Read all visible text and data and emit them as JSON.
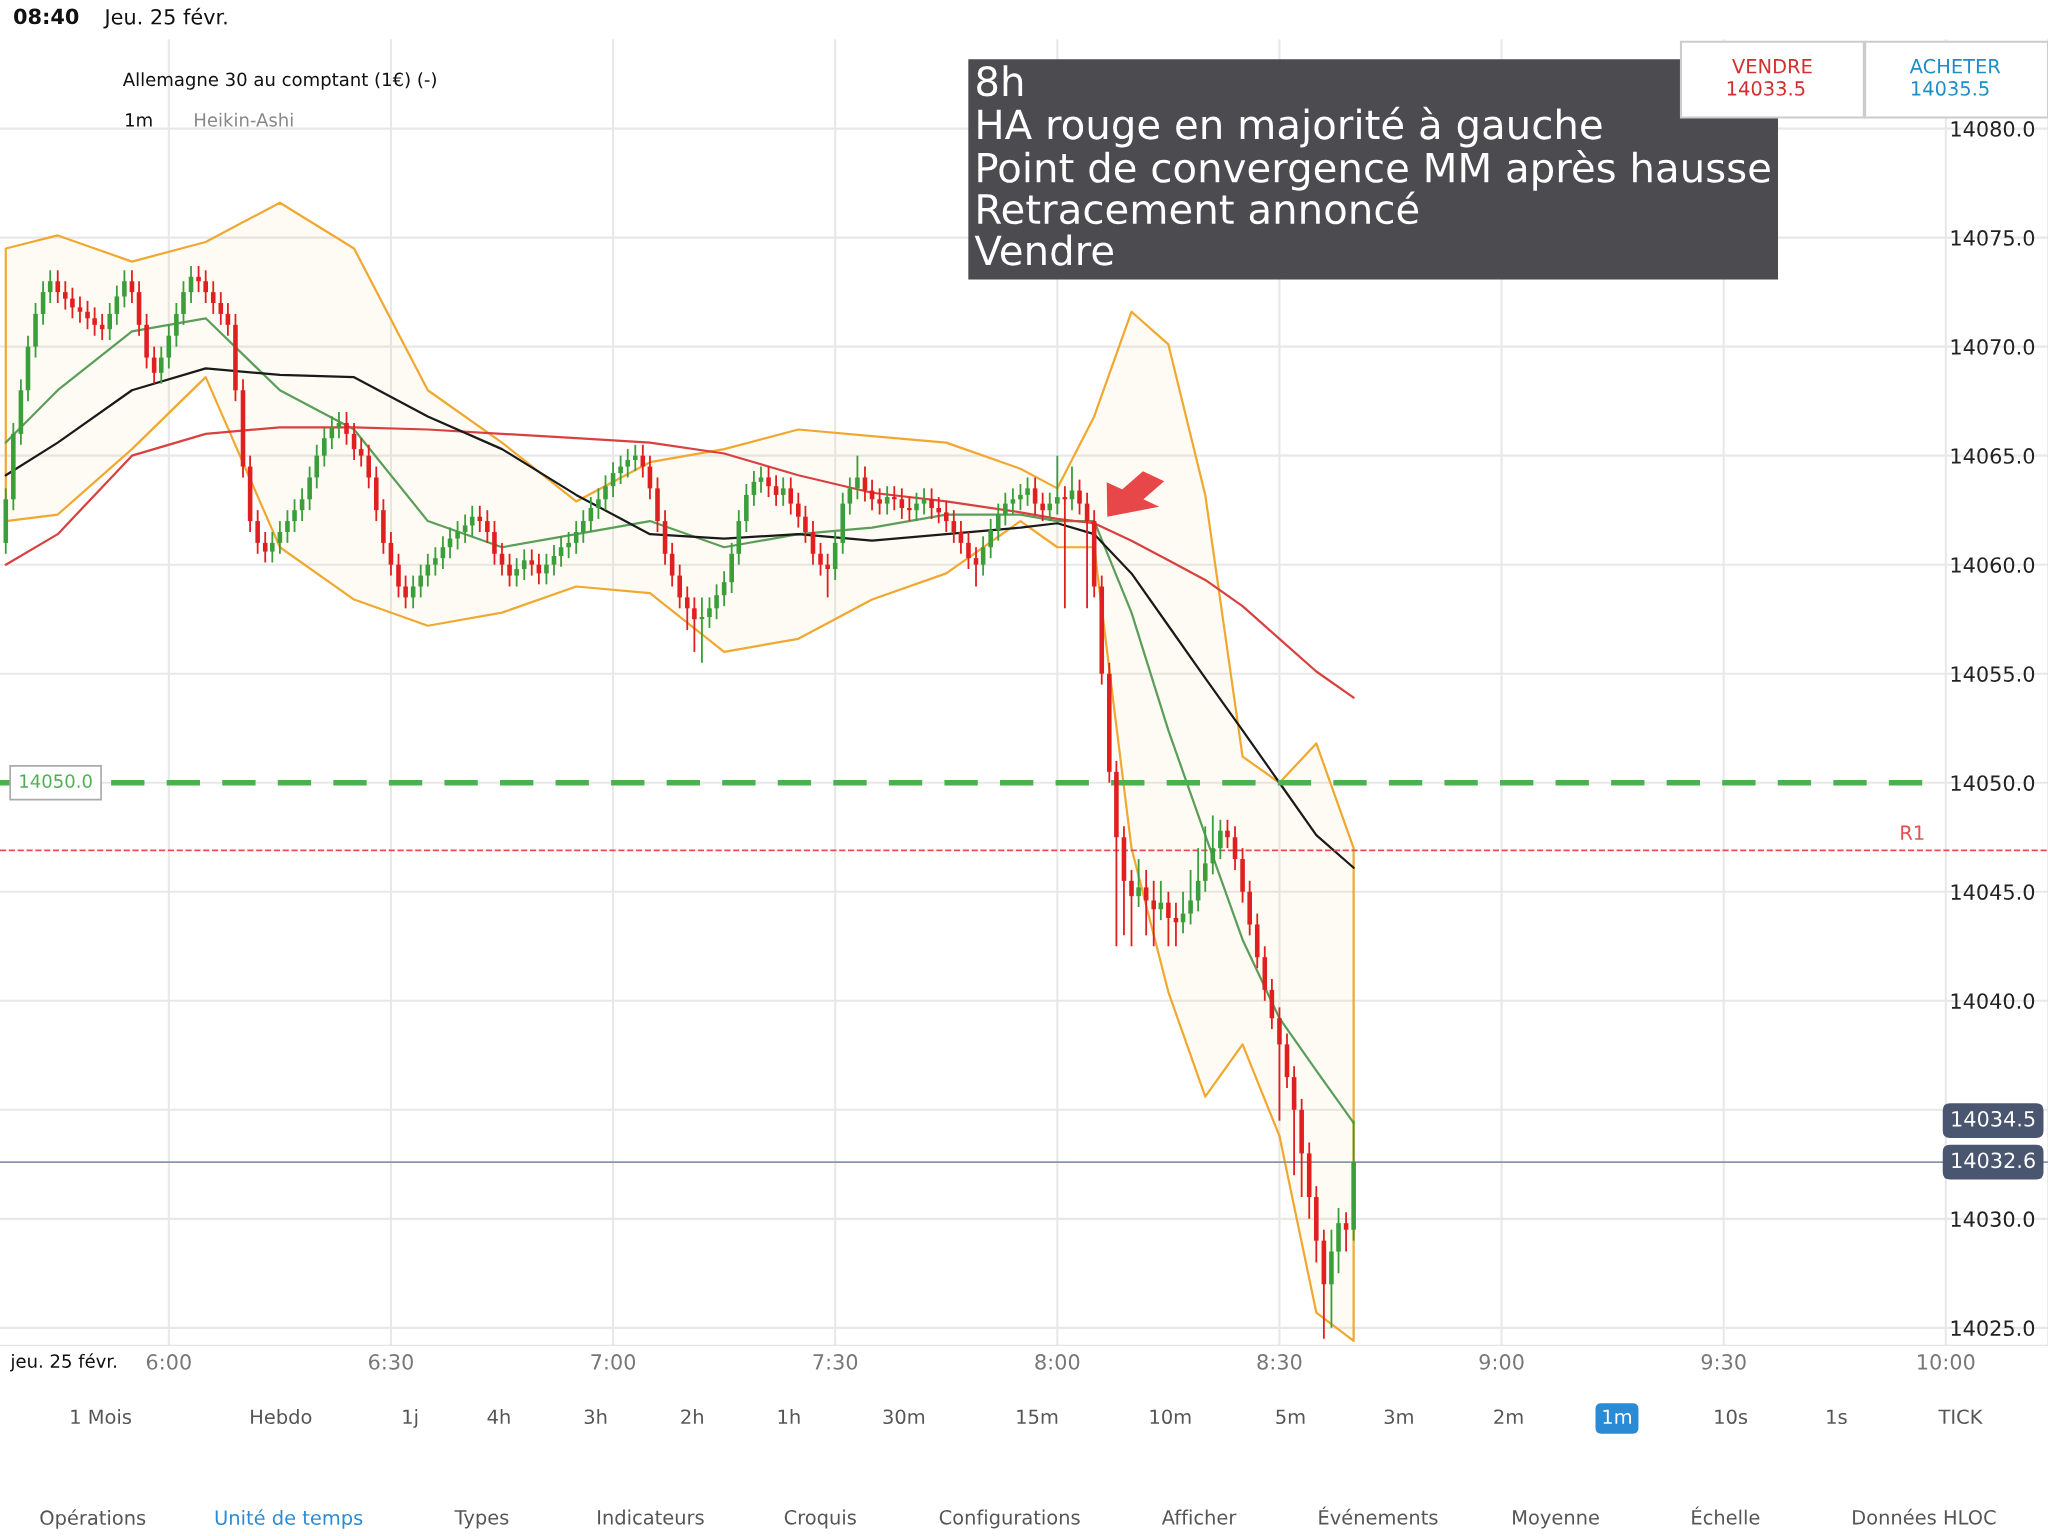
{
  "chart_data": {
    "type": "candlestick",
    "title": "Allemagne 30 au comptant (1€) (-)",
    "subtitle": "Heikin-Ashi",
    "xlim": [
      5.62,
      10.23
    ],
    "ylim": [
      14024.2,
      14084.1
    ],
    "xticks": [
      {
        "value": 6,
        "label": "6:00"
      },
      {
        "value": 6.5,
        "label": "6:30"
      },
      {
        "value": 7,
        "label": "7:00"
      },
      {
        "value": 7.5,
        "label": "7:30"
      },
      {
        "value": 8,
        "label": "8:00"
      },
      {
        "value": 8.5,
        "label": "8:30"
      },
      {
        "value": 9,
        "label": "9:00"
      },
      {
        "value": 9.5,
        "label": "9:30"
      },
      {
        "value": 10,
        "label": "10:00"
      }
    ],
    "yticks": [
      {
        "value": 14025,
        "label": "14025.0"
      },
      {
        "value": 14030,
        "label": "14030.0"
      },
      {
        "value": 14035,
        "label": null
      },
      {
        "value": 14040,
        "label": "14040.0"
      },
      {
        "value": 14045,
        "label": "14045.0"
      },
      {
        "value": 14050,
        "label": "14050.0"
      },
      {
        "value": 14055,
        "label": "14055.0"
      },
      {
        "value": 14060,
        "label": "14060.0"
      },
      {
        "value": 14065,
        "label": "14065.0"
      },
      {
        "value": 14070,
        "label": "14070.0"
      },
      {
        "value": 14075,
        "label": "14075.0"
      },
      {
        "value": 14080,
        "label": "14080.0"
      }
    ],
    "grid": true,
    "series": [
      {
        "type": "line",
        "color": "#5a9e5a",
        "x": [
          5.633,
          5.75,
          5.917,
          6.083,
          6.25,
          6.417,
          6.583,
          6.75,
          6.917,
          7.083,
          7.25,
          7.417,
          7.583,
          7.75,
          7.917,
          8.0,
          8.083,
          8.167,
          8.25,
          8.333,
          8.417,
          8.5,
          8.583,
          8.667
        ],
        "values": [
          14065.6,
          14068.0,
          14070.7,
          14071.3,
          14068.0,
          14066.2,
          14062.0,
          14060.8,
          14061.4,
          14062.0,
          14060.8,
          14061.4,
          14061.7,
          14062.3,
          14062.3,
          14062.0,
          14062.0,
          14057.8,
          14052.4,
          14047.6,
          14042.8,
          14039.2,
          14036.8,
          14034.4
        ],
        "lower": [
          14062.0,
          14062.3,
          14065.3,
          14068.6,
          14060.8,
          14058.4,
          14057.2,
          14057.8,
          14059.0,
          14058.7,
          14056.0,
          14056.6,
          14058.4,
          14059.6,
          14062.0,
          14060.8,
          14060.8,
          14047.0,
          14040.4,
          14035.6,
          14038.0,
          14033.8,
          14025.7,
          14024.4
        ],
        "upper": [
          14074.5,
          14075.1,
          14073.9,
          14074.8,
          14076.6,
          14074.5,
          14068.0,
          14065.6,
          14062.9,
          14064.7,
          14065.3,
          14066.2,
          14065.9,
          14065.6,
          14064.4,
          14063.5,
          14066.8,
          14071.6,
          14070.1,
          14063.2,
          14051.2,
          14050.0,
          14051.8,
          14047.0
        ]
      },
      {
        "type": "line",
        "color": "#d94040",
        "x": [
          5.633,
          5.75,
          5.917,
          6.083,
          6.25,
          6.417,
          6.583,
          6.75,
          6.917,
          7.083,
          7.25,
          7.417,
          7.583,
          7.75,
          7.917,
          8.0,
          8.083,
          8.167,
          8.25,
          8.333,
          8.417,
          8.5,
          8.583,
          8.667
        ],
        "values": [
          14060.0,
          14061.4,
          14065.0,
          14066.0,
          14066.3,
          14066.3,
          14066.2,
          14066.0,
          14065.8,
          14065.6,
          14065.1,
          14064.1,
          14063.3,
          14062.9,
          14062.4,
          14062.1,
          14061.9,
          14061.1,
          14060.2,
          14059.3,
          14058.1,
          14056.6,
          14055.1,
          14053.9
        ]
      },
      {
        "type": "line",
        "color": "#1a1a1a",
        "x": [
          5.633,
          5.75,
          5.917,
          6.083,
          6.25,
          6.417,
          6.583,
          6.75,
          6.917,
          7.083,
          7.25,
          7.417,
          7.583,
          7.75,
          7.917,
          8.0,
          8.083,
          8.167,
          8.25,
          8.333,
          8.417,
          8.5,
          8.583,
          8.667
        ],
        "values": [
          14064.1,
          14065.6,
          14068.0,
          14069.0,
          14068.7,
          14068.6,
          14066.8,
          14065.3,
          14063.2,
          14061.4,
          14061.2,
          14061.4,
          14061.1,
          14061.4,
          14061.7,
          14061.9,
          14061.4,
          14059.6,
          14057.2,
          14054.8,
          14052.4,
          14050.0,
          14047.6,
          14046.1
        ]
      },
      {
        "x": [
          5.633,
          5.65,
          5.667,
          5.683,
          5.7,
          5.717,
          5.733,
          5.75,
          5.767,
          5.783,
          5.8,
          5.817,
          5.833,
          5.85,
          5.867,
          5.883,
          5.9,
          5.917,
          5.933,
          5.95,
          5.967,
          5.983,
          6.0,
          6.017,
          6.033,
          6.05,
          6.067,
          6.083,
          6.1,
          6.117,
          6.133,
          6.15,
          6.167,
          6.183,
          6.2,
          6.217,
          6.233,
          6.25,
          6.267,
          6.283,
          6.3,
          6.317,
          6.333,
          6.35,
          6.367,
          6.383,
          6.4,
          6.417,
          6.433,
          6.45,
          6.467,
          6.483,
          6.5,
          6.517,
          6.533,
          6.55,
          6.567,
          6.583,
          6.6,
          6.617,
          6.633,
          6.65,
          6.667,
          6.683,
          6.7,
          6.717,
          6.733,
          6.75,
          6.767,
          6.783,
          6.8,
          6.817,
          6.833,
          6.85,
          6.867,
          6.883,
          6.9,
          6.917,
          6.933,
          6.95,
          6.967,
          6.983,
          7.0,
          7.017,
          7.033,
          7.05,
          7.067,
          7.083,
          7.1,
          7.117,
          7.133,
          7.15,
          7.167,
          7.183,
          7.2,
          7.217,
          7.233,
          7.25,
          7.267,
          7.283,
          7.3,
          7.317,
          7.333,
          7.35,
          7.367,
          7.383,
          7.4,
          7.417,
          7.433,
          7.45,
          7.467,
          7.483,
          7.5,
          7.517,
          7.533,
          7.55,
          7.567,
          7.583,
          7.6,
          7.617,
          7.633,
          7.65,
          7.667,
          7.683,
          7.7,
          7.717,
          7.733,
          7.75,
          7.767,
          7.783,
          7.8,
          7.817,
          7.833,
          7.85,
          7.867,
          7.883,
          7.9,
          7.917,
          7.933,
          7.95,
          7.967,
          7.983,
          8.0,
          8.017,
          8.033,
          8.05,
          8.067,
          8.083,
          8.1,
          8.117,
          8.133,
          8.15,
          8.167,
          8.183,
          8.2,
          8.217,
          8.233,
          8.25,
          8.267,
          8.283,
          8.3,
          8.317,
          8.333,
          8.35,
          8.367,
          8.383,
          8.4,
          8.417,
          8.433,
          8.45,
          8.467,
          8.483,
          8.5,
          8.517,
          8.533,
          8.55,
          8.567,
          8.583,
          8.6,
          8.617,
          8.633,
          8.65,
          8.667
        ],
        "ohlc": [
          [
            14061,
            14063.5,
            14060.5,
            14063
          ],
          [
            14063,
            14066.5,
            14062.5,
            14066
          ],
          [
            14066,
            14068.5,
            14065.5,
            14068
          ],
          [
            14068,
            14070.5,
            14067.5,
            14070
          ],
          [
            14070,
            14072,
            14069.5,
            14071.5
          ],
          [
            14071.5,
            14073,
            14071,
            14072.5
          ],
          [
            14072.5,
            14073.5,
            14072,
            14073
          ],
          [
            14073,
            14073.5,
            14072,
            14072.5
          ],
          [
            14072.5,
            14073,
            14071.7,
            14072.2
          ],
          [
            14072.2,
            14072.7,
            14071.3,
            14071.8
          ],
          [
            14071.8,
            14072.3,
            14071.1,
            14071.6
          ],
          [
            14071.6,
            14072.1,
            14070.8,
            14071.3
          ],
          [
            14071.3,
            14071.8,
            14070.5,
            14071
          ],
          [
            14071,
            14071.5,
            14070.3,
            14070.8
          ],
          [
            14070.8,
            14072,
            14070.3,
            14071.5
          ],
          [
            14071.5,
            14072.8,
            14071,
            14072.3
          ],
          [
            14072.3,
            14073.5,
            14071.8,
            14073
          ],
          [
            14073,
            14073.5,
            14072,
            14072.5
          ],
          [
            14072.5,
            14073,
            14070.5,
            14071
          ],
          [
            14071,
            14071.5,
            14069,
            14069.5
          ],
          [
            14069.5,
            14070,
            14068.3,
            14068.8
          ],
          [
            14068.8,
            14070,
            14068.3,
            14069.5
          ],
          [
            14069.5,
            14071,
            14069,
            14070.5
          ],
          [
            14070.5,
            14072,
            14070,
            14071.5
          ],
          [
            14071.5,
            14073,
            14071,
            14072.5
          ],
          [
            14072.5,
            14073.7,
            14072,
            14073.2
          ],
          [
            14073.2,
            14073.7,
            14072.5,
            14073
          ],
          [
            14073,
            14073.5,
            14072,
            14072.5
          ],
          [
            14072.5,
            14073,
            14071.5,
            14072
          ],
          [
            14072,
            14072.5,
            14071,
            14071.5
          ],
          [
            14071.5,
            14072,
            14070.5,
            14071
          ],
          [
            14071,
            14071.5,
            14067.5,
            14068
          ],
          [
            14068,
            14068.5,
            14064,
            14064.5
          ],
          [
            14064.5,
            14065,
            14061.5,
            14062
          ],
          [
            14062,
            14062.5,
            14060.5,
            14061
          ],
          [
            14061,
            14061.5,
            14060.1,
            14060.6
          ],
          [
            14060.6,
            14061.5,
            14060.1,
            14061
          ],
          [
            14061,
            14062,
            14060.5,
            14061.5
          ],
          [
            14061.5,
            14062.5,
            14061,
            14062
          ],
          [
            14062,
            14063,
            14061.5,
            14062.5
          ],
          [
            14062.5,
            14063.5,
            14062,
            14063
          ],
          [
            14063,
            14064.5,
            14062.5,
            14064
          ],
          [
            14064,
            14065.5,
            14063.5,
            14065
          ],
          [
            14065,
            14066.3,
            14064.5,
            14065.8
          ],
          [
            14065.8,
            14066.8,
            14065.3,
            14066.3
          ],
          [
            14066.3,
            14067,
            14065.8,
            14066.5
          ],
          [
            14066.5,
            14067,
            14065.5,
            14066
          ],
          [
            14066,
            14066.5,
            14064.8,
            14065.3
          ],
          [
            14065.3,
            14065.8,
            14064.5,
            14065
          ],
          [
            14065,
            14065.5,
            14063.5,
            14064
          ],
          [
            14064,
            14064.5,
            14062,
            14062.5
          ],
          [
            14062.5,
            14063,
            14060.5,
            14061
          ],
          [
            14061,
            14061.5,
            14059.5,
            14060
          ],
          [
            14060,
            14060.5,
            14058.5,
            14059
          ],
          [
            14059,
            14059.5,
            14058,
            14058.5
          ],
          [
            14058.5,
            14059.5,
            14058,
            14059
          ],
          [
            14059,
            14060,
            14058.5,
            14059.5
          ],
          [
            14059.5,
            14060.5,
            14059,
            14060
          ],
          [
            14060,
            14060.8,
            14059.5,
            14060.3
          ],
          [
            14060.3,
            14061.3,
            14059.8,
            14060.8
          ],
          [
            14060.8,
            14061.7,
            14060.3,
            14061.2
          ],
          [
            14061.2,
            14062,
            14060.7,
            14061.5
          ],
          [
            14061.5,
            14062.3,
            14061,
            14061.8
          ],
          [
            14061.8,
            14062.7,
            14061.3,
            14062.2
          ],
          [
            14062.2,
            14062.7,
            14061.5,
            14062
          ],
          [
            14062,
            14062.5,
            14061,
            14061.5
          ],
          [
            14061.5,
            14062,
            14060,
            14060.5
          ],
          [
            14060.5,
            14061,
            14059.5,
            14060
          ],
          [
            14060,
            14060.5,
            14059,
            14059.5
          ],
          [
            14059.5,
            14060.3,
            14059,
            14059.8
          ],
          [
            14059.8,
            14060.7,
            14059.3,
            14060.2
          ],
          [
            14060.2,
            14060.7,
            14059.5,
            14060
          ],
          [
            14060,
            14060.5,
            14059.1,
            14059.6
          ],
          [
            14059.6,
            14060.5,
            14059.1,
            14060
          ],
          [
            14060,
            14060.9,
            14059.5,
            14060.4
          ],
          [
            14060.4,
            14061.3,
            14059.9,
            14060.8
          ],
          [
            14060.8,
            14061.5,
            14060.3,
            14061
          ],
          [
            14061,
            14062,
            14060.5,
            14061.5
          ],
          [
            14061.5,
            14062.5,
            14061,
            14062
          ],
          [
            14062,
            14063.1,
            14061.5,
            14062.6
          ],
          [
            14062.6,
            14063.5,
            14062.1,
            14063
          ],
          [
            14063,
            14064.1,
            14062.5,
            14063.6
          ],
          [
            14063.6,
            14064.7,
            14063.1,
            14064.2
          ],
          [
            14064.2,
            14065,
            14063.7,
            14064.5
          ],
          [
            14064.5,
            14065.3,
            14064,
            14064.8
          ],
          [
            14064.8,
            14065.5,
            14064.3,
            14065
          ],
          [
            14065,
            14065.5,
            14064,
            14064.5
          ],
          [
            14064.5,
            14065,
            14063,
            14063.5
          ],
          [
            14063.5,
            14064,
            14061.5,
            14062
          ],
          [
            14062,
            14062.5,
            14060,
            14060.5
          ],
          [
            14060.5,
            14061,
            14059,
            14059.5
          ],
          [
            14059.5,
            14060,
            14058,
            14058.5
          ],
          [
            14058.5,
            14059,
            14057,
            14058
          ],
          [
            14058,
            14058.5,
            14056,
            14057.5
          ],
          [
            14057.5,
            14058.5,
            14055.5,
            14057.6
          ],
          [
            14057.6,
            14058.5,
            14057.1,
            14058
          ],
          [
            14058,
            14059.1,
            14057.5,
            14058.6
          ],
          [
            14058.6,
            14059.7,
            14058.1,
            14059.2
          ],
          [
            14059.2,
            14061,
            14058.7,
            14060.5
          ],
          [
            14060.5,
            14062.5,
            14060,
            14062
          ],
          [
            14062,
            14063.7,
            14061.5,
            14063.2
          ],
          [
            14063.2,
            14064.3,
            14062.7,
            14063.8
          ],
          [
            14063.8,
            14064.5,
            14063.3,
            14064
          ],
          [
            14064,
            14064.5,
            14063.1,
            14063.6
          ],
          [
            14063.6,
            14064.1,
            14062.7,
            14063.2
          ],
          [
            14063.2,
            14064,
            14062.7,
            14063.5
          ],
          [
            14063.5,
            14064,
            14062.3,
            14062.8
          ],
          [
            14062.8,
            14063.3,
            14061.7,
            14062.2
          ],
          [
            14062.2,
            14062.7,
            14061,
            14061.5
          ],
          [
            14061.5,
            14062,
            14060,
            14060.5
          ],
          [
            14060.5,
            14061,
            14059.5,
            14060
          ],
          [
            14060,
            14060.5,
            14058.5,
            14059.8
          ],
          [
            14059.8,
            14061.5,
            14059.3,
            14061
          ],
          [
            14061,
            14063.3,
            14060.5,
            14062.8
          ],
          [
            14062.8,
            14064,
            14062.3,
            14063.5
          ],
          [
            14063.5,
            14065,
            14063,
            14064
          ],
          [
            14064,
            14064.5,
            14062.9,
            14063.4
          ],
          [
            14063.4,
            14063.9,
            14062.5,
            14063
          ],
          [
            14063,
            14063.5,
            14062.3,
            14062.8
          ],
          [
            14062.8,
            14063.6,
            14062.3,
            14063.1
          ],
          [
            14063.1,
            14063.6,
            14062.5,
            14063
          ],
          [
            14063,
            14063.5,
            14062.1,
            14062.6
          ],
          [
            14062.6,
            14063.1,
            14062,
            14062.5
          ],
          [
            14062.5,
            14063.3,
            14062,
            14062.8
          ],
          [
            14062.8,
            14063.5,
            14062.3,
            14063
          ],
          [
            14063,
            14063.5,
            14062.1,
            14062.6
          ],
          [
            14062.6,
            14063.1,
            14061.9,
            14062.4
          ],
          [
            14062.4,
            14062.9,
            14061.5,
            14062
          ],
          [
            14062,
            14062.5,
            14061,
            14061.5
          ],
          [
            14061.5,
            14062,
            14060.5,
            14061
          ],
          [
            14061,
            14061.5,
            14059.8,
            14060.3
          ],
          [
            14060.3,
            14060.8,
            14059,
            14060
          ],
          [
            14060,
            14061.3,
            14059.5,
            14060.8
          ],
          [
            14060.8,
            14062.1,
            14060.3,
            14061.6
          ],
          [
            14061.6,
            14062.8,
            14061.1,
            14062.3
          ],
          [
            14062.3,
            14063.3,
            14061.8,
            14062.8
          ],
          [
            14062.8,
            14063.5,
            14062.3,
            14063
          ],
          [
            14063,
            14063.7,
            14062.5,
            14063.2
          ],
          [
            14063.2,
            14064,
            14062.7,
            14063.5
          ],
          [
            14063.5,
            14064,
            14062.3,
            14062.8
          ],
          [
            14062.8,
            14063.3,
            14062,
            14062.5
          ],
          [
            14062.5,
            14063.3,
            14062,
            14062.8
          ],
          [
            14062.8,
            14065,
            14062.3,
            14063.1
          ],
          [
            14063.1,
            14063.6,
            14058,
            14063
          ],
          [
            14063,
            14064.5,
            14062.5,
            14063.4
          ],
          [
            14063.4,
            14063.9,
            14062.3,
            14062.8
          ],
          [
            14062.8,
            14063.3,
            14058,
            14062
          ],
          [
            14062,
            14062.5,
            14058.5,
            14059
          ],
          [
            14059,
            14059.5,
            14054.5,
            14055
          ],
          [
            14055,
            14055.5,
            14050,
            14050.5
          ],
          [
            14050.5,
            14051,
            14042.5,
            14047.5
          ],
          [
            14047.5,
            14048,
            14043,
            14045.5
          ],
          [
            14045.5,
            14046,
            14042.5,
            14044.8
          ],
          [
            14044.8,
            14046.5,
            14044.3,
            14045.2
          ],
          [
            14045.2,
            14046,
            14043,
            14044.6
          ],
          [
            14044.6,
            14045.5,
            14042.5,
            14044.2
          ],
          [
            14044.2,
            14045.5,
            14043.7,
            14044.5
          ],
          [
            14044.5,
            14045,
            14042.5,
            14043.8
          ],
          [
            14043.8,
            14044.5,
            14042.5,
            14043.6
          ],
          [
            14043.6,
            14045,
            14043.1,
            14044
          ],
          [
            14044,
            14046,
            14043.5,
            14044.6
          ],
          [
            14044.6,
            14047,
            14044.1,
            14045.5
          ],
          [
            14045.5,
            14048,
            14045,
            14046.3
          ],
          [
            14046.3,
            14048.5,
            14045.8,
            14047
          ],
          [
            14047,
            14048.3,
            14046.5,
            14047.8
          ],
          [
            14047.8,
            14048.3,
            14047,
            14047.5
          ],
          [
            14047.5,
            14048,
            14046,
            14046.5
          ],
          [
            14046.5,
            14047,
            14044.5,
            14045
          ],
          [
            14045,
            14045.5,
            14043,
            14043.5
          ],
          [
            14043.5,
            14044,
            14041.5,
            14042
          ],
          [
            14042,
            14042.5,
            14040,
            14040.5
          ],
          [
            14040.5,
            14041,
            14038.7,
            14039.2
          ],
          [
            14039.2,
            14039.7,
            14034.5,
            14038
          ],
          [
            14038,
            14038.5,
            14036,
            14036.5
          ],
          [
            14036.5,
            14037,
            14032,
            14035
          ],
          [
            14035,
            14035.5,
            14031,
            14033
          ],
          [
            14033,
            14033.5,
            14030,
            14031
          ],
          [
            14031,
            14031.5,
            14028,
            14029
          ],
          [
            14029,
            14029.5,
            14024.5,
            14027
          ],
          [
            14027,
            14029.5,
            14025,
            14028.5
          ],
          [
            14028.5,
            14030.5,
            14027.5,
            14029.8
          ],
          [
            14029.8,
            14030.3,
            14028.5,
            14029.5
          ],
          [
            14029.5,
            14034.5,
            14029,
            14032.6
          ]
        ],
        "colors": [
          "#3a9e3a",
          "#3a9e3a",
          "#3a9e3a",
          "#3a9e3a",
          "#3a9e3a",
          "#3a9e3a",
          "#3a9e3a",
          "#e02020",
          "#e02020",
          "#e02020",
          "#e02020",
          "#e02020",
          "#e02020",
          "#e02020",
          "#3a9e3a",
          "#3a9e3a",
          "#3a9e3a",
          "#e02020",
          "#e02020",
          "#e02020",
          "#e02020",
          "#3a9e3a",
          "#3a9e3a",
          "#3a9e3a",
          "#3a9e3a",
          "#3a9e3a",
          "#e02020",
          "#e02020",
          "#e02020",
          "#e02020",
          "#e02020",
          "#e02020",
          "#e02020",
          "#e02020",
          "#e02020",
          "#e02020",
          "#3a9e3a",
          "#3a9e3a",
          "#3a9e3a",
          "#3a9e3a",
          "#3a9e3a",
          "#3a9e3a",
          "#3a9e3a",
          "#3a9e3a",
          "#3a9e3a",
          "#3a9e3a",
          "#e02020",
          "#e02020",
          "#e02020",
          "#e02020",
          "#e02020",
          "#e02020",
          "#e02020",
          "#e02020",
          "#e02020",
          "#3a9e3a",
          "#3a9e3a",
          "#3a9e3a",
          "#3a9e3a",
          "#3a9e3a",
          "#3a9e3a",
          "#3a9e3a",
          "#3a9e3a",
          "#3a9e3a",
          "#e02020",
          "#e02020",
          "#e02020",
          "#e02020",
          "#e02020",
          "#3a9e3a",
          "#3a9e3a",
          "#e02020",
          "#e02020",
          "#3a9e3a",
          "#3a9e3a",
          "#3a9e3a",
          "#3a9e3a",
          "#3a9e3a",
          "#3a9e3a",
          "#3a9e3a",
          "#3a9e3a",
          "#3a9e3a",
          "#3a9e3a",
          "#3a9e3a",
          "#3a9e3a",
          "#3a9e3a",
          "#e02020",
          "#e02020",
          "#e02020",
          "#e02020",
          "#e02020",
          "#e02020",
          "#e02020",
          "#e02020",
          "#3a9e3a",
          "#3a9e3a",
          "#3a9e3a",
          "#3a9e3a",
          "#3a9e3a",
          "#3a9e3a",
          "#3a9e3a",
          "#3a9e3a",
          "#3a9e3a",
          "#e02020",
          "#e02020",
          "#3a9e3a",
          "#e02020",
          "#e02020",
          "#e02020",
          "#e02020",
          "#e02020",
          "#e02020",
          "#3a9e3a",
          "#3a9e3a",
          "#3a9e3a",
          "#3a9e3a",
          "#e02020",
          "#e02020",
          "#e02020",
          "#3a9e3a",
          "#e02020",
          "#e02020",
          "#e02020",
          "#3a9e3a",
          "#3a9e3a",
          "#e02020",
          "#e02020",
          "#e02020",
          "#e02020",
          "#e02020",
          "#e02020",
          "#e02020",
          "#3a9e3a",
          "#3a9e3a",
          "#3a9e3a",
          "#3a9e3a",
          "#3a9e3a",
          "#3a9e3a",
          "#3a9e3a",
          "#e02020",
          "#e02020",
          "#3a9e3a",
          "#3a9e3a",
          "#e02020",
          "#3a9e3a",
          "#e02020",
          "#e02020",
          "#e02020",
          "#e02020",
          "#e02020",
          "#e02020",
          "#e02020",
          "#e02020",
          "#3a9e3a",
          "#e02020",
          "#e02020",
          "#3a9e3a",
          "#e02020",
          "#e02020",
          "#3a9e3a",
          "#3a9e3a",
          "#3a9e3a",
          "#3a9e3a",
          "#3a9e3a",
          "#3a9e3a",
          "#e02020",
          "#e02020",
          "#e02020",
          "#e02020",
          "#e02020",
          "#e02020",
          "#e02020",
          "#e02020",
          "#e02020",
          "#e02020",
          "#e02020",
          "#e02020",
          "#e02020",
          "#e02020",
          "#3a9e3a",
          "#3a9e3a",
          "#e02020",
          "#3a9e3a"
        ]
      }
    ],
    "ref_lines": [
      {
        "axis": "y",
        "value": 14050,
        "label": "14050.0",
        "color": "#4caf50",
        "line_style": "dashed"
      },
      {
        "axis": "y",
        "value": 14046.9,
        "label": "R1",
        "color": "#e05050",
        "line_style": "dashed"
      },
      {
        "axis": "y",
        "value": 14032.6,
        "label": "14032.6",
        "color": "#8a96a8",
        "line_style": "solid"
      }
    ],
    "annotations": [
      "8h\nHA rouge en majorité à gauche\nPoint de convergence MM après hausse\nRetracement annoncé\nVendre",
      "14034.5",
      "jeu. 25 févr.",
      "08:40",
      "Jeu. 25 févr.",
      "VENDRE",
      "14033.5",
      "ACHETER",
      "14035.5",
      "1 Mois",
      "Hebdo",
      "1j",
      "4h",
      "3h",
      "2h",
      "1h",
      "30m",
      "15m",
      "10m",
      "5m",
      "3m",
      "2m",
      "1m",
      "10s",
      "1s",
      "TICK",
      "Opérations",
      "Unité de temps",
      "Types",
      "Indicateurs",
      "Croquis",
      "Configurations",
      "Afficher",
      "Événements",
      "Moyenne",
      "Échelle",
      "Données HLOC",
      "1m"
    ]
  }
}
